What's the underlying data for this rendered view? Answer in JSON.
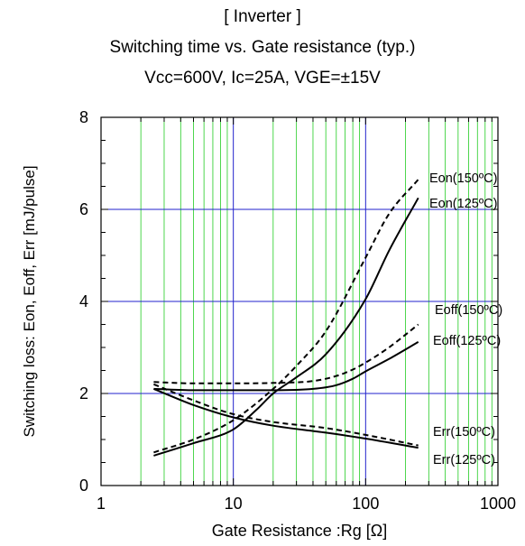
{
  "chart_data": {
    "type": "line",
    "title": "[ Inverter  ]",
    "subtitle": "Switching time vs. Gate resistance (typ.)",
    "conditions": "Vcc=600V, Ic=25A, VGE=±15V",
    "xlabel": "Gate Resistance :Rg [Ω]",
    "ylabel": "Switching loss: Eon, Eoff, Err [mJ/pulse]",
    "xscale": "log",
    "xlim": [
      1,
      1000
    ],
    "ylim": [
      0,
      8
    ],
    "xticks": [
      "1",
      "10",
      "100",
      "1000"
    ],
    "yticks": [
      "0",
      "2",
      "4",
      "6",
      "8"
    ],
    "grid": true,
    "colors": {
      "major_grid": "#2222cc",
      "minor_grid": "#22cc22",
      "curve": "#000000"
    },
    "series": [
      {
        "name": "Eon(150ºC)",
        "style": "dashed",
        "x": [
          2.5,
          5,
          10,
          20,
          30,
          50,
          100,
          150,
          250
        ],
        "y": [
          0.72,
          1.0,
          1.42,
          2.1,
          2.6,
          3.35,
          4.95,
          5.9,
          6.65
        ]
      },
      {
        "name": "Eon(125ºC)",
        "style": "solid",
        "x": [
          2.5,
          5,
          10,
          15,
          20,
          30,
          50,
          100,
          150,
          250
        ],
        "y": [
          0.65,
          0.92,
          1.22,
          1.65,
          2.0,
          2.35,
          2.85,
          4.05,
          5.1,
          6.25
        ]
      },
      {
        "name": "Eoff(150ºC)",
        "style": "dashed",
        "x": [
          2.5,
          5,
          10,
          20,
          40,
          60,
          80,
          100,
          150,
          250
        ],
        "y": [
          2.25,
          2.22,
          2.22,
          2.23,
          2.27,
          2.38,
          2.52,
          2.67,
          3.0,
          3.5
        ]
      },
      {
        "name": "Eoff(125ºC)",
        "style": "solid",
        "x": [
          2.5,
          5,
          10,
          20,
          40,
          60,
          80,
          100,
          150,
          250
        ],
        "y": [
          2.1,
          2.07,
          2.07,
          2.07,
          2.1,
          2.18,
          2.32,
          2.48,
          2.75,
          3.12
        ]
      },
      {
        "name": "Err(150ºC)",
        "style": "dashed",
        "x": [
          2.5,
          5,
          10,
          20,
          50,
          100,
          250
        ],
        "y": [
          2.2,
          1.85,
          1.55,
          1.38,
          1.25,
          1.1,
          0.87
        ]
      },
      {
        "name": "Err(125ºC)",
        "style": "solid",
        "x": [
          2.5,
          5,
          10,
          20,
          50,
          100,
          250
        ],
        "y": [
          2.1,
          1.75,
          1.48,
          1.3,
          1.15,
          1.02,
          0.82
        ]
      }
    ],
    "annotations": [
      "Eon(150ºC)",
      "Eon(125ºC)",
      "Eoff(150ºC)",
      "Eoff(125ºC)",
      "Err(150ºC)",
      "Err(125ºC)"
    ]
  }
}
